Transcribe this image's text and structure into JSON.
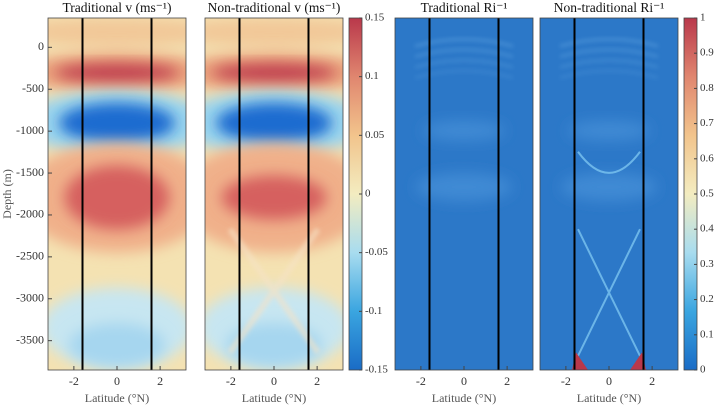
{
  "chart_data": [
    {
      "type": "heatmap",
      "field": "v",
      "title": "Traditional v (ms⁻¹)",
      "xlabel": "Latitude (°N)",
      "ylabel": "Depth (m)",
      "xlim": [
        -3.2,
        3.2
      ],
      "xticks": [
        -2,
        0,
        2
      ],
      "ylim": [
        -3850,
        350
      ],
      "yticks": [
        0,
        -500,
        -1000,
        -1500,
        -2000,
        -2500,
        -3000,
        -3500
      ],
      "lines": [
        {
          "x": -1.6,
          "color": "#000000"
        },
        {
          "x": 1.6,
          "color": "#000000"
        }
      ]
    },
    {
      "type": "heatmap",
      "field": "v",
      "title": "Non-traditional v (ms⁻¹)",
      "xlabel": "Latitude (°N)",
      "xlim": [
        -3.2,
        3.2
      ],
      "xticks": [
        -2,
        0,
        2
      ],
      "ylim": [
        -3850,
        350
      ],
      "lines": [
        {
          "x": -1.6,
          "color": "#000000"
        },
        {
          "x": 1.6,
          "color": "#000000"
        }
      ],
      "colorbar": {
        "lim": [
          -0.15,
          0.15
        ],
        "ticks": [
          -0.15,
          -0.1,
          -0.05,
          0,
          0.05,
          0.1,
          0.15
        ],
        "colors": [
          "#1a6cc6",
          "#3aa5e0",
          "#a8dcef",
          "#f3ecc0",
          "#f2c48c",
          "#e0866f",
          "#b9384b"
        ]
      }
    },
    {
      "type": "heatmap",
      "field": "ri",
      "title": "Traditional Ri⁻¹",
      "xlabel": "Latitude (°N)",
      "xlim": [
        -3.2,
        3.2
      ],
      "xticks": [
        -2,
        0,
        2
      ],
      "ylim": [
        -3850,
        350
      ],
      "lines": [
        {
          "x": -1.6,
          "color": "#000000"
        },
        {
          "x": 1.6,
          "color": "#000000"
        }
      ]
    },
    {
      "type": "heatmap",
      "field": "ri",
      "title": "Non-traditional Ri⁻¹",
      "xlabel": "Latitude (°N)",
      "xlim": [
        -3.2,
        3.2
      ],
      "xticks": [
        -2,
        0,
        2
      ],
      "ylim": [
        -3850,
        350
      ],
      "lines": [
        {
          "x": -1.6,
          "color": "#000000"
        },
        {
          "x": 1.6,
          "color": "#000000"
        }
      ],
      "colorbar": {
        "lim": [
          0,
          1
        ],
        "ticks": [
          0,
          0.1,
          0.2,
          0.3,
          0.4,
          0.5,
          0.6,
          0.7,
          0.8,
          0.9,
          1
        ],
        "colors": [
          "#1a6cc6",
          "#3aa5e0",
          "#a8dcef",
          "#f3ecc0",
          "#f2c48c",
          "#e0866f",
          "#b9384b"
        ]
      }
    }
  ]
}
